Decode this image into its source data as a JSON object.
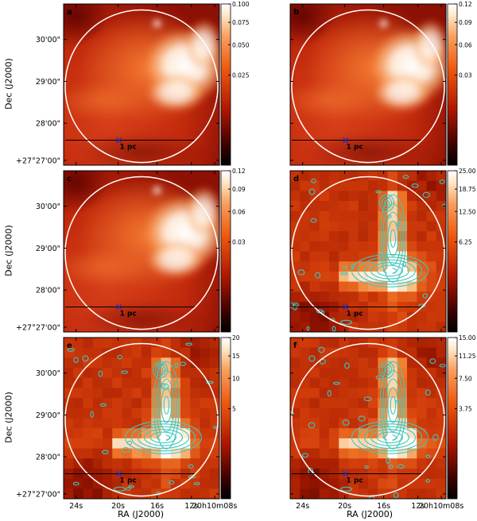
{
  "figure": {
    "y_axis_label": "Dec (J2000)",
    "x_axis_label": "RA (J2000)",
    "dec_ticks": [
      "30'00\"",
      "29'00\"",
      "28'00\"",
      "+27°27'00\""
    ],
    "ra_ticks": [
      "24s",
      "20s",
      "16s",
      "12s",
      "20h10m08s"
    ],
    "scale_bar_label": "1 pc",
    "marker": "cross",
    "colors": {
      "contour": "#3cc6c0",
      "circle": "#ffffff",
      "marker": "#2030c0"
    }
  },
  "panels": [
    {
      "id": "a",
      "label": "a",
      "style": "smooth",
      "contours": false,
      "colorbar_ticks": [
        "0.100",
        "0.075",
        "0.050",
        "0.025"
      ],
      "colorbar_values": [
        0.1,
        0.075,
        0.05,
        0.025
      ]
    },
    {
      "id": "b",
      "label": "b",
      "style": "smooth",
      "contours": false,
      "colorbar_ticks": [
        "0.12",
        "0.09",
        "0.06",
        "0.03"
      ],
      "colorbar_values": [
        0.12,
        0.09,
        0.06,
        0.03
      ]
    },
    {
      "id": "c",
      "label": "c",
      "style": "smooth",
      "contours": false,
      "colorbar_ticks": [
        "0.12",
        "0.09",
        "0.06",
        "0.03"
      ],
      "colorbar_values": [
        0.12,
        0.09,
        0.06,
        0.03
      ]
    },
    {
      "id": "d",
      "label": "d",
      "style": "pixel",
      "contours": true,
      "colorbar_ticks": [
        "25.00",
        "18.75",
        "12.50",
        "6.25"
      ],
      "colorbar_values": [
        25.0,
        18.75,
        12.5,
        6.25
      ]
    },
    {
      "id": "e",
      "label": "e",
      "style": "pixel",
      "contours": true,
      "colorbar_ticks": [
        "20",
        "15",
        "10",
        "5"
      ],
      "colorbar_values": [
        20,
        15,
        10,
        5
      ]
    },
    {
      "id": "f",
      "label": "f",
      "style": "pixel",
      "contours": true,
      "colorbar_ticks": [
        "15.00",
        "11.25",
        "7.50",
        "3.75"
      ],
      "colorbar_values": [
        15.0,
        11.25,
        7.5,
        3.75
      ]
    }
  ]
}
